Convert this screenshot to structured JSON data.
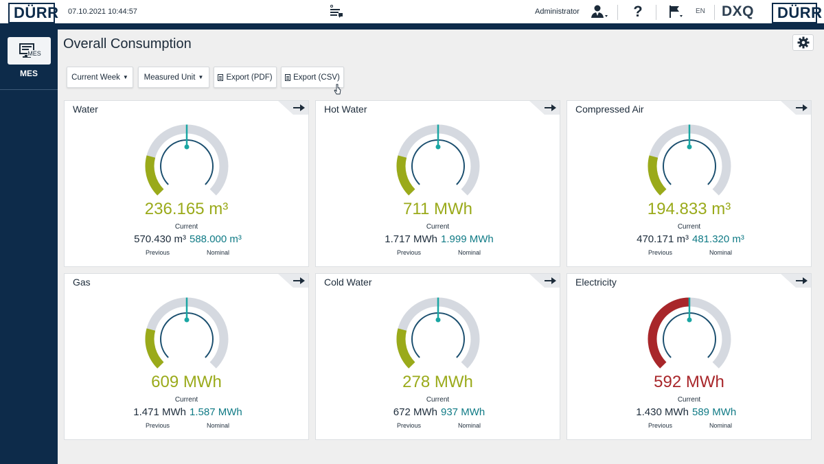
{
  "header": {
    "logo_left": "DÜRR",
    "timestamp": "07.10.2021 10:44:57",
    "user": "Administrator",
    "language": "EN",
    "brand": "DXQ",
    "logo_right": "DÜRR"
  },
  "sidebar": {
    "mes_icon_text": "MES",
    "mes_label": "MES"
  },
  "page": {
    "title": "Overall Consumption"
  },
  "toolbar": {
    "period": "Current Week",
    "unit": "Measured Unit",
    "export_pdf": "Export (PDF)",
    "export_csv": "Export (CSV)"
  },
  "labels": {
    "current": "Current",
    "previous": "Previous",
    "nominal": "Nominal"
  },
  "colors": {
    "ok": "#9aaa1a",
    "alert": "#a8262a",
    "nominal": "#0f7a85",
    "needle": "#1aa6a3",
    "track": "#d5d9e0",
    "inner": "#1a4e6e"
  },
  "cards": [
    {
      "title": "Water",
      "current": "236.165 m³",
      "previous": "570.430 m³",
      "nominal": "588.000 m³",
      "status": "ok"
    },
    {
      "title": "Hot Water",
      "current": "711 MWh",
      "previous": "1.717 MWh",
      "nominal": "1.999 MWh",
      "status": "ok"
    },
    {
      "title": "Compressed Air",
      "current": "194.833 m³",
      "previous": "470.171 m³",
      "nominal": "481.320 m³",
      "status": "ok"
    },
    {
      "title": "Gas",
      "current": "609 MWh",
      "previous": "1.471 MWh",
      "nominal": "1.587 MWh",
      "status": "ok"
    },
    {
      "title": "Cold Water",
      "current": "278 MWh",
      "previous": "672 MWh",
      "nominal": "937 MWh",
      "status": "ok"
    },
    {
      "title": "Electricity",
      "current": "592 MWh",
      "previous": "1.430 MWh",
      "nominal": "589 MWh",
      "status": "alert"
    }
  ]
}
